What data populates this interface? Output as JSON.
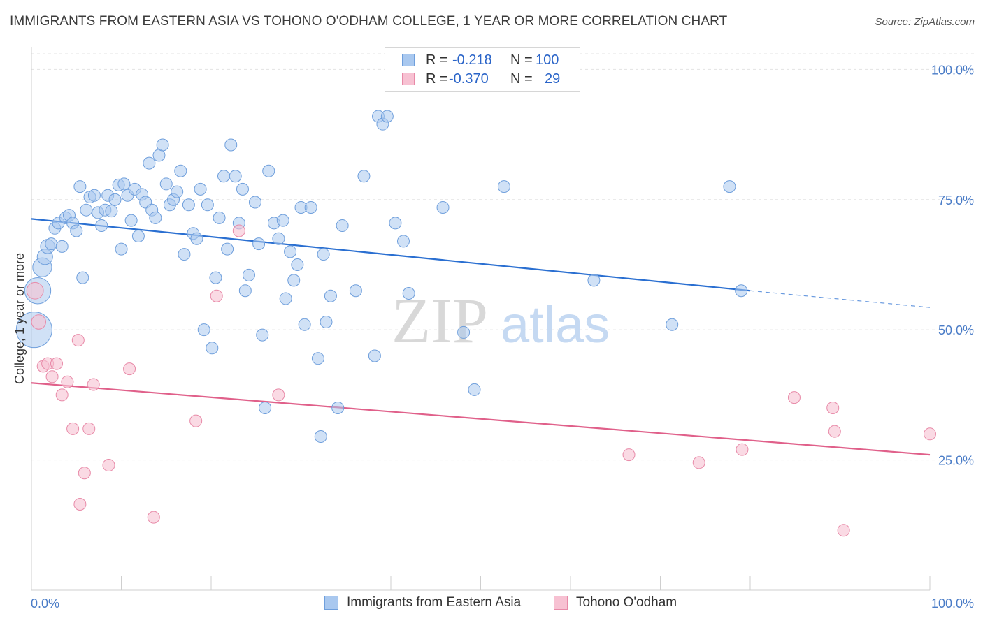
{
  "title": "IMMIGRANTS FROM EASTERN ASIA VS TOHONO O'ODHAM COLLEGE, 1 YEAR OR MORE CORRELATION CHART",
  "source": "Source: ZipAtlas.com",
  "watermark": {
    "zip": "ZIP",
    "atlas": "atlas"
  },
  "legend": {
    "rows": [
      {
        "r_label": "R =",
        "r_value": "-0.218",
        "n_label": "N =",
        "n_value": "100",
        "color": "#a9c8ef",
        "border": "#6f9fdc"
      },
      {
        "r_label": "R =",
        "r_value": "-0.370",
        "n_label": "N =",
        "n_value": "29",
        "color": "#f7c1d2",
        "border": "#e88aa8"
      }
    ]
  },
  "bottom_legend": [
    {
      "label": "Immigrants from Eastern Asia",
      "color": "#a9c8ef",
      "border": "#6f9fdc"
    },
    {
      "label": "Tohono O'odham",
      "color": "#f7c1d2",
      "border": "#e88aa8"
    }
  ],
  "chart_data": {
    "type": "scatter",
    "title": "IMMIGRANTS FROM EASTERN ASIA VS TOHONO O'ODHAM COLLEGE, 1 YEAR OR MORE CORRELATION CHART",
    "ylabel": "College, 1 year or more",
    "xlabel": "",
    "xlim": [
      0,
      100
    ],
    "ylim": [
      0,
      103
    ],
    "x_tick_labels": [
      "0.0%",
      "100.0%"
    ],
    "y_ticks": [
      25,
      50,
      75,
      100
    ],
    "y_tick_labels": [
      "25.0%",
      "50.0%",
      "75.0%",
      "100.0%"
    ],
    "grid": true,
    "legend_position": "top-center",
    "series": [
      {
        "name": "Immigrants from Eastern Asia",
        "color": "#a9c8ef",
        "stroke": "#6f9fdc",
        "line_color": "#2a6fd1",
        "trend": {
          "x0": 0,
          "y0": 71.3,
          "x1": 80,
          "y1": 57.5,
          "dash_to_x": 100,
          "dash_to_y": 54.3
        },
        "points": [
          [
            0.3,
            50.0,
            3
          ],
          [
            0.7,
            57.5,
            2.2
          ],
          [
            1.2,
            62.0,
            1.6
          ],
          [
            1.5,
            64.0,
            1.3
          ],
          [
            1.8,
            66.0,
            1.2
          ],
          [
            2.2,
            66.5,
            1
          ],
          [
            2.6,
            69.5,
            1
          ],
          [
            3.0,
            70.5,
            1
          ],
          [
            3.4,
            66.0,
            1
          ],
          [
            3.8,
            71.5,
            1
          ],
          [
            4.2,
            72.0,
            1
          ],
          [
            4.6,
            70.5,
            1
          ],
          [
            5.0,
            69.0,
            1
          ],
          [
            5.4,
            77.5,
            1
          ],
          [
            5.7,
            60.0,
            1
          ],
          [
            6.1,
            73.0,
            1
          ],
          [
            6.5,
            75.5,
            1
          ],
          [
            7.0,
            75.8,
            1
          ],
          [
            7.4,
            72.5,
            1
          ],
          [
            7.8,
            70.0,
            1
          ],
          [
            8.2,
            73.0,
            1
          ],
          [
            8.5,
            75.8,
            1
          ],
          [
            8.9,
            72.8,
            1
          ],
          [
            9.3,
            75.0,
            1
          ],
          [
            9.7,
            77.8,
            1
          ],
          [
            10.0,
            65.5,
            1
          ],
          [
            10.3,
            78.0,
            1
          ],
          [
            10.7,
            75.8,
            1
          ],
          [
            11.1,
            71.0,
            1
          ],
          [
            11.5,
            77.0,
            1
          ],
          [
            11.9,
            68.0,
            1
          ],
          [
            12.3,
            76.0,
            1
          ],
          [
            12.7,
            74.5,
            1
          ],
          [
            13.1,
            82.0,
            1
          ],
          [
            13.4,
            73.0,
            1
          ],
          [
            13.8,
            71.5,
            1
          ],
          [
            14.2,
            83.5,
            1
          ],
          [
            14.6,
            85.5,
            1
          ],
          [
            15.0,
            78.0,
            1
          ],
          [
            15.4,
            74.0,
            1
          ],
          [
            15.8,
            75.0,
            1
          ],
          [
            16.2,
            76.5,
            1
          ],
          [
            16.6,
            80.5,
            1
          ],
          [
            17.0,
            64.5,
            1
          ],
          [
            17.5,
            74.0,
            1
          ],
          [
            18.0,
            68.5,
            1
          ],
          [
            18.4,
            67.5,
            1
          ],
          [
            18.8,
            77.0,
            1
          ],
          [
            19.2,
            50.0,
            1
          ],
          [
            19.6,
            74.0,
            1
          ],
          [
            20.1,
            46.5,
            1
          ],
          [
            20.5,
            60.0,
            1
          ],
          [
            20.9,
            71.5,
            1
          ],
          [
            21.4,
            79.5,
            1
          ],
          [
            21.8,
            65.5,
            1
          ],
          [
            22.2,
            85.5,
            1
          ],
          [
            22.7,
            79.5,
            1
          ],
          [
            23.1,
            70.5,
            1
          ],
          [
            23.5,
            77.0,
            1
          ],
          [
            23.8,
            57.5,
            1
          ],
          [
            24.2,
            60.5,
            1
          ],
          [
            24.9,
            74.5,
            1
          ],
          [
            25.3,
            66.5,
            1
          ],
          [
            25.7,
            49.0,
            1
          ],
          [
            26.0,
            35.0,
            1
          ],
          [
            26.4,
            80.5,
            1
          ],
          [
            27.0,
            70.5,
            1
          ],
          [
            27.5,
            67.5,
            1
          ],
          [
            28.0,
            71.0,
            1
          ],
          [
            28.3,
            56.0,
            1
          ],
          [
            28.8,
            65.0,
            1
          ],
          [
            29.2,
            59.5,
            1
          ],
          [
            29.6,
            62.5,
            1
          ],
          [
            30.0,
            73.5,
            1
          ],
          [
            30.4,
            51.0,
            1
          ],
          [
            31.1,
            73.5,
            1
          ],
          [
            31.9,
            44.5,
            1
          ],
          [
            32.2,
            29.5,
            1
          ],
          [
            32.5,
            64.5,
            1
          ],
          [
            32.8,
            51.5,
            1
          ],
          [
            33.3,
            56.5,
            1
          ],
          [
            34.1,
            35.0,
            1
          ],
          [
            34.6,
            70.0,
            1
          ],
          [
            36.1,
            57.5,
            1
          ],
          [
            37.0,
            79.5,
            1
          ],
          [
            38.2,
            45.0,
            1
          ],
          [
            38.6,
            91.0,
            1
          ],
          [
            39.1,
            89.5,
            1
          ],
          [
            39.6,
            91.0,
            1
          ],
          [
            40.5,
            70.5,
            1
          ],
          [
            41.4,
            67.0,
            1
          ],
          [
            42.0,
            57.0,
            1
          ],
          [
            45.8,
            73.5,
            1
          ],
          [
            48.1,
            49.5,
            1
          ],
          [
            49.3,
            38.5,
            1
          ],
          [
            52.6,
            77.5,
            1
          ],
          [
            62.6,
            59.5,
            1
          ],
          [
            71.3,
            51.0,
            1
          ],
          [
            77.7,
            77.5,
            1
          ],
          [
            79.0,
            57.5,
            1
          ]
        ]
      },
      {
        "name": "Tohono O'odham",
        "color": "#f7c1d2",
        "stroke": "#e88aa8",
        "line_color": "#e0608a",
        "trend": {
          "x0": 0,
          "y0": 39.8,
          "x1": 100,
          "y1": 26.0
        },
        "points": [
          [
            0.4,
            57.5,
            1.4
          ],
          [
            0.8,
            51.5,
            1.2
          ],
          [
            1.3,
            43.0,
            1
          ],
          [
            1.8,
            43.5,
            1
          ],
          [
            2.3,
            41.0,
            1
          ],
          [
            2.8,
            43.5,
            1
          ],
          [
            3.4,
            37.5,
            1
          ],
          [
            4.0,
            40.0,
            1
          ],
          [
            4.6,
            31.0,
            1
          ],
          [
            5.2,
            48.0,
            1
          ],
          [
            5.4,
            16.5,
            1
          ],
          [
            5.9,
            22.5,
            1
          ],
          [
            6.4,
            31.0,
            1
          ],
          [
            6.9,
            39.5,
            1
          ],
          [
            8.6,
            24.0,
            1
          ],
          [
            10.9,
            42.5,
            1
          ],
          [
            13.6,
            14.0,
            1
          ],
          [
            18.3,
            32.5,
            1
          ],
          [
            20.6,
            56.5,
            1
          ],
          [
            23.1,
            69.0,
            1
          ],
          [
            27.5,
            37.5,
            1
          ],
          [
            66.5,
            26.0,
            1
          ],
          [
            74.3,
            24.5,
            1
          ],
          [
            79.1,
            27.0,
            1
          ],
          [
            84.9,
            37.0,
            1
          ],
          [
            89.2,
            35.0,
            1
          ],
          [
            89.4,
            30.5,
            1
          ],
          [
            90.4,
            11.5,
            1
          ],
          [
            100.0,
            30.0,
            1
          ]
        ]
      }
    ]
  }
}
